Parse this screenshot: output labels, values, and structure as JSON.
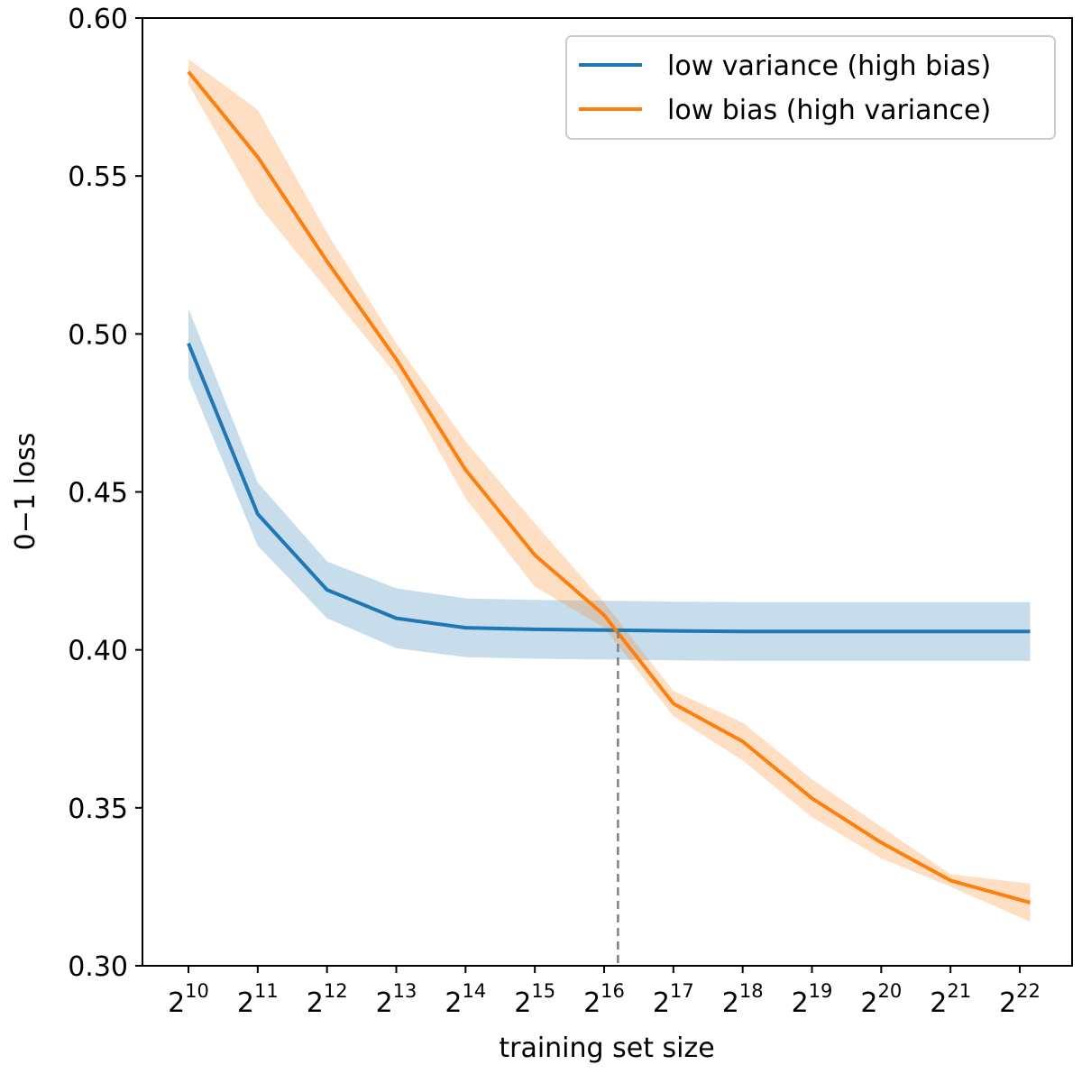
{
  "chart_data": {
    "type": "line",
    "title": "",
    "xlabel": "training set size",
    "ylabel": "0−1 loss",
    "x_scale": "log2",
    "x_ticks": [
      {
        "base": "2",
        "exp": "10"
      },
      {
        "base": "2",
        "exp": "11"
      },
      {
        "base": "2",
        "exp": "12"
      },
      {
        "base": "2",
        "exp": "13"
      },
      {
        "base": "2",
        "exp": "14"
      },
      {
        "base": "2",
        "exp": "15"
      },
      {
        "base": "2",
        "exp": "16"
      },
      {
        "base": "2",
        "exp": "17"
      },
      {
        "base": "2",
        "exp": "18"
      },
      {
        "base": "2",
        "exp": "19"
      },
      {
        "base": "2",
        "exp": "20"
      },
      {
        "base": "2",
        "exp": "21"
      },
      {
        "base": "2",
        "exp": "22"
      }
    ],
    "y_ticks": [
      "0.30",
      "0.35",
      "0.40",
      "0.45",
      "0.50",
      "0.55",
      "0.60"
    ],
    "ylim": [
      0.3,
      0.6
    ],
    "grid": false,
    "legend_position": "top-right",
    "series": [
      {
        "name": "low variance (high bias)",
        "color": "#1f77b4",
        "band_color": "#1f77b4",
        "x_exp": [
          10,
          11,
          12,
          13,
          14,
          15,
          16.2,
          17,
          18,
          19,
          20,
          21,
          22.15
        ],
        "y": [
          0.497,
          0.443,
          0.419,
          0.41,
          0.407,
          0.4065,
          0.4062,
          0.406,
          0.4058,
          0.4058,
          0.4058,
          0.4058,
          0.4058
        ],
        "band_half_width": [
          0.011,
          0.01,
          0.009,
          0.0095,
          0.0093,
          0.0093,
          0.0093,
          0.0093,
          0.0093,
          0.0093,
          0.0093,
          0.0093,
          0.0093
        ]
      },
      {
        "name": "low bias (high variance)",
        "color": "#ff7f0e",
        "band_color": "#ff7f0e",
        "x_exp": [
          10,
          11,
          12,
          13,
          14,
          15,
          16,
          17,
          18,
          19,
          20,
          21,
          22.15
        ],
        "y": [
          0.583,
          0.556,
          0.523,
          0.492,
          0.457,
          0.43,
          0.411,
          0.383,
          0.371,
          0.353,
          0.339,
          0.327,
          0.32
        ],
        "band_half_width": [
          0.004,
          0.015,
          0.009,
          0.005,
          0.009,
          0.01,
          0.004,
          0.004,
          0.006,
          0.006,
          0.005,
          0.002,
          0.006
        ]
      }
    ],
    "annotations": {
      "crossover_x_exp": 16.2,
      "crossover_y": 0.4062,
      "line_color": "#808080"
    }
  }
}
